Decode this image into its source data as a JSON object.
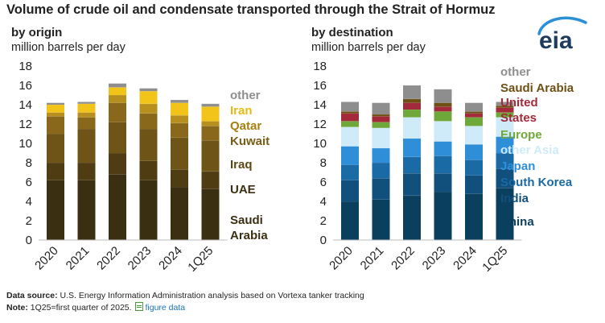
{
  "header": {
    "title": "Volume of crude oil and condensate transported through the Strait of Hormuz"
  },
  "logo": {
    "text": "eia",
    "icon": "eia-logo-icon"
  },
  "chart_data": [
    {
      "type": "bar",
      "stacked": true,
      "title": "by origin",
      "subtitle": "million barrels per day",
      "categories": [
        "2020",
        "2021",
        "2022",
        "2023",
        "2024",
        "1Q25"
      ],
      "ylim": [
        0,
        18
      ],
      "yticks": [
        0,
        2,
        4,
        6,
        8,
        10,
        12,
        14,
        16,
        18
      ],
      "grid": false,
      "legend_position": "right",
      "series": [
        {
          "name": "Saudi Arabia",
          "label": "Saudi\nArabia",
          "color": "#3b2f12",
          "values": [
            6.2,
            6.2,
            6.8,
            6.2,
            5.5,
            5.3
          ]
        },
        {
          "name": "UAE",
          "color": "#4f3c12",
          "values": [
            1.8,
            1.8,
            2.2,
            2.0,
            1.8,
            1.8
          ]
        },
        {
          "name": "Iraq",
          "color": "#6e5416",
          "values": [
            3.0,
            3.5,
            3.2,
            3.3,
            3.3,
            3.2
          ]
        },
        {
          "name": "Kuwait",
          "color": "#8a681b",
          "values": [
            1.8,
            1.2,
            2.0,
            1.6,
            1.5,
            1.5
          ]
        },
        {
          "name": "Qatar",
          "color": "#b78f1f",
          "values": [
            0.4,
            0.5,
            0.8,
            1.0,
            0.8,
            0.5
          ]
        },
        {
          "name": "Iran",
          "color": "#f2c318",
          "values": [
            0.8,
            0.9,
            0.8,
            1.3,
            1.3,
            1.5
          ]
        },
        {
          "name": "other",
          "color": "#8e8e8e",
          "values": [
            0.2,
            0.2,
            0.4,
            0.3,
            0.3,
            0.3
          ]
        }
      ],
      "label_colors": {
        "other": "#8e8e8e",
        "Iran": "#e8b914",
        "Qatar": "#a68010",
        "Kuwait": "#7a5c16",
        "Iraq": "#5e4812",
        "UAE": "#3b2f12",
        "Saudi Arabia": "#3b2f12"
      }
    },
    {
      "type": "bar",
      "stacked": true,
      "title": "by destination",
      "subtitle": "million barrels per day",
      "categories": [
        "2020",
        "2021",
        "2022",
        "2023",
        "2024",
        "1Q25"
      ],
      "ylim": [
        0,
        18
      ],
      "yticks": [
        0,
        2,
        4,
        6,
        8,
        10,
        12,
        14,
        16,
        18
      ],
      "grid": false,
      "legend_position": "right",
      "series": [
        {
          "name": "China",
          "color": "#0b3f5e",
          "values": [
            4.0,
            4.2,
            4.6,
            5.0,
            4.8,
            5.4
          ]
        },
        {
          "name": "India",
          "color": "#114f7c",
          "values": [
            2.2,
            2.2,
            2.3,
            1.9,
            1.9,
            2.0
          ]
        },
        {
          "name": "South Korea",
          "color": "#1a6aa6",
          "values": [
            1.6,
            1.6,
            1.7,
            1.8,
            1.6,
            1.6
          ]
        },
        {
          "name": "Japan",
          "color": "#2e8fd8",
          "values": [
            1.9,
            1.5,
            1.9,
            1.5,
            1.6,
            1.7
          ]
        },
        {
          "name": "other Asia",
          "color": "#cfeaf9",
          "values": [
            2.0,
            2.1,
            2.2,
            2.1,
            1.9,
            2.0
          ]
        },
        {
          "name": "Europe",
          "color": "#6fa83a",
          "values": [
            0.6,
            0.6,
            0.8,
            1.0,
            0.9,
            0.5
          ]
        },
        {
          "name": "United States",
          "label": "United\nStates",
          "color": "#a32a3a",
          "values": [
            0.8,
            0.6,
            0.7,
            0.5,
            0.4,
            0.5
          ]
        },
        {
          "name": "Saudi Arabia",
          "color": "#6e5014",
          "values": [
            0.2,
            0.2,
            0.4,
            0.4,
            0.2,
            0.2
          ]
        },
        {
          "name": "other",
          "color": "#8e8e8e",
          "values": [
            1.0,
            1.2,
            1.4,
            1.4,
            0.9,
            0.4
          ]
        }
      ],
      "label_colors": {
        "other": "#8e8e8e",
        "Saudi Arabia": "#6e5014",
        "United States": "#a32a3a",
        "Europe": "#6fa83a",
        "other Asia": "#cfeaf9",
        "Japan": "#2e8fd8",
        "South Korea": "#1a6aa6",
        "India": "#114f7c",
        "China": "#0b3f5e"
      }
    }
  ],
  "footer": {
    "source_label": "Data source:",
    "source_text": "U.S. Energy Information Administration analysis based on Vortexa tanker tracking",
    "note_label": "Note:",
    "note_text": "1Q25=first quarter of 2025.",
    "figure_data_link": "figure data",
    "figure_data_icon": "spreadsheet-icon"
  }
}
